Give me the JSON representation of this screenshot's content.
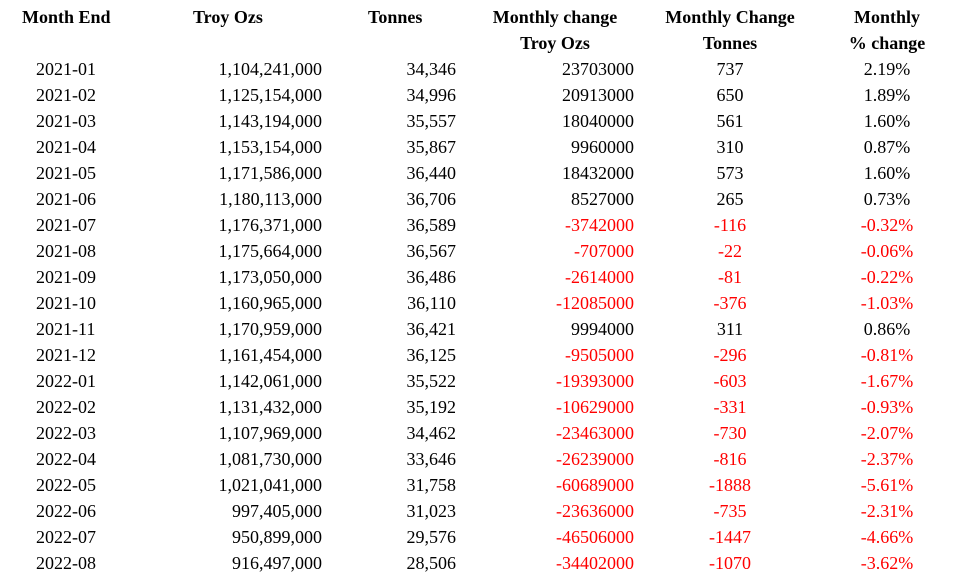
{
  "headers": {
    "month_end": "Month End",
    "troy_ozs": "Troy Ozs",
    "tonnes": "Tonnes",
    "monthly_change_oz_1": "Monthly change",
    "monthly_change_oz_2": "Troy Ozs",
    "monthly_change_t_1": "Monthly Change",
    "monthly_change_t_2": "Tonnes",
    "monthly_pct_1": "Monthly",
    "monthly_pct_2": "% change"
  },
  "colors": {
    "text": "#000000",
    "negative": "#ff0000",
    "background": "#ffffff"
  },
  "rows": [
    {
      "month": "2021-01",
      "oz": "1,104,241,000",
      "tonnes": "34,346",
      "chg_oz": "23703000",
      "chg_t": "737",
      "pct": "2.19%",
      "neg": false
    },
    {
      "month": "2021-02",
      "oz": "1,125,154,000",
      "tonnes": "34,996",
      "chg_oz": "20913000",
      "chg_t": "650",
      "pct": "1.89%",
      "neg": false
    },
    {
      "month": "2021-03",
      "oz": "1,143,194,000",
      "tonnes": "35,557",
      "chg_oz": "18040000",
      "chg_t": "561",
      "pct": "1.60%",
      "neg": false
    },
    {
      "month": "2021-04",
      "oz": "1,153,154,000",
      "tonnes": "35,867",
      "chg_oz": "9960000",
      "chg_t": "310",
      "pct": "0.87%",
      "neg": false
    },
    {
      "month": "2021-05",
      "oz": "1,171,586,000",
      "tonnes": "36,440",
      "chg_oz": "18432000",
      "chg_t": "573",
      "pct": "1.60%",
      "neg": false
    },
    {
      "month": "2021-06",
      "oz": "1,180,113,000",
      "tonnes": "36,706",
      "chg_oz": "8527000",
      "chg_t": "265",
      "pct": "0.73%",
      "neg": false
    },
    {
      "month": "2021-07",
      "oz": "1,176,371,000",
      "tonnes": "36,589",
      "chg_oz": "-3742000",
      "chg_t": "-116",
      "pct": "-0.32%",
      "neg": true
    },
    {
      "month": "2021-08",
      "oz": "1,175,664,000",
      "tonnes": "36,567",
      "chg_oz": "-707000",
      "chg_t": "-22",
      "pct": "-0.06%",
      "neg": true
    },
    {
      "month": "2021-09",
      "oz": "1,173,050,000",
      "tonnes": "36,486",
      "chg_oz": "-2614000",
      "chg_t": "-81",
      "pct": "-0.22%",
      "neg": true
    },
    {
      "month": "2021-10",
      "oz": "1,160,965,000",
      "tonnes": "36,110",
      "chg_oz": "-12085000",
      "chg_t": "-376",
      "pct": "-1.03%",
      "neg": true
    },
    {
      "month": "2021-11",
      "oz": "1,170,959,000",
      "tonnes": "36,421",
      "chg_oz": "9994000",
      "chg_t": "311",
      "pct": "0.86%",
      "neg": false
    },
    {
      "month": "2021-12",
      "oz": "1,161,454,000",
      "tonnes": "36,125",
      "chg_oz": "-9505000",
      "chg_t": "-296",
      "pct": "-0.81%",
      "neg": true
    },
    {
      "month": "2022-01",
      "oz": "1,142,061,000",
      "tonnes": "35,522",
      "chg_oz": "-19393000",
      "chg_t": "-603",
      "pct": "-1.67%",
      "neg": true
    },
    {
      "month": "2022-02",
      "oz": "1,131,432,000",
      "tonnes": "35,192",
      "chg_oz": "-10629000",
      "chg_t": "-331",
      "pct": "-0.93%",
      "neg": true
    },
    {
      "month": "2022-03",
      "oz": "1,107,969,000",
      "tonnes": "34,462",
      "chg_oz": "-23463000",
      "chg_t": "-730",
      "pct": "-2.07%",
      "neg": true
    },
    {
      "month": "2022-04",
      "oz": "1,081,730,000",
      "tonnes": "33,646",
      "chg_oz": "-26239000",
      "chg_t": "-816",
      "pct": "-2.37%",
      "neg": true
    },
    {
      "month": "2022-05",
      "oz": "1,021,041,000",
      "tonnes": "31,758",
      "chg_oz": "-60689000",
      "chg_t": "-1888",
      "pct": "-5.61%",
      "neg": true
    },
    {
      "month": "2022-06",
      "oz": "997,405,000",
      "tonnes": "31,023",
      "chg_oz": "-23636000",
      "chg_t": "-735",
      "pct": "-2.31%",
      "neg": true
    },
    {
      "month": "2022-07",
      "oz": "950,899,000",
      "tonnes": "29,576",
      "chg_oz": "-46506000",
      "chg_t": "-1447",
      "pct": "-4.66%",
      "neg": true
    },
    {
      "month": "2022-08",
      "oz": "916,497,000",
      "tonnes": "28,506",
      "chg_oz": "-34402000",
      "chg_t": "-1070",
      "pct": "-3.62%",
      "neg": true
    }
  ]
}
